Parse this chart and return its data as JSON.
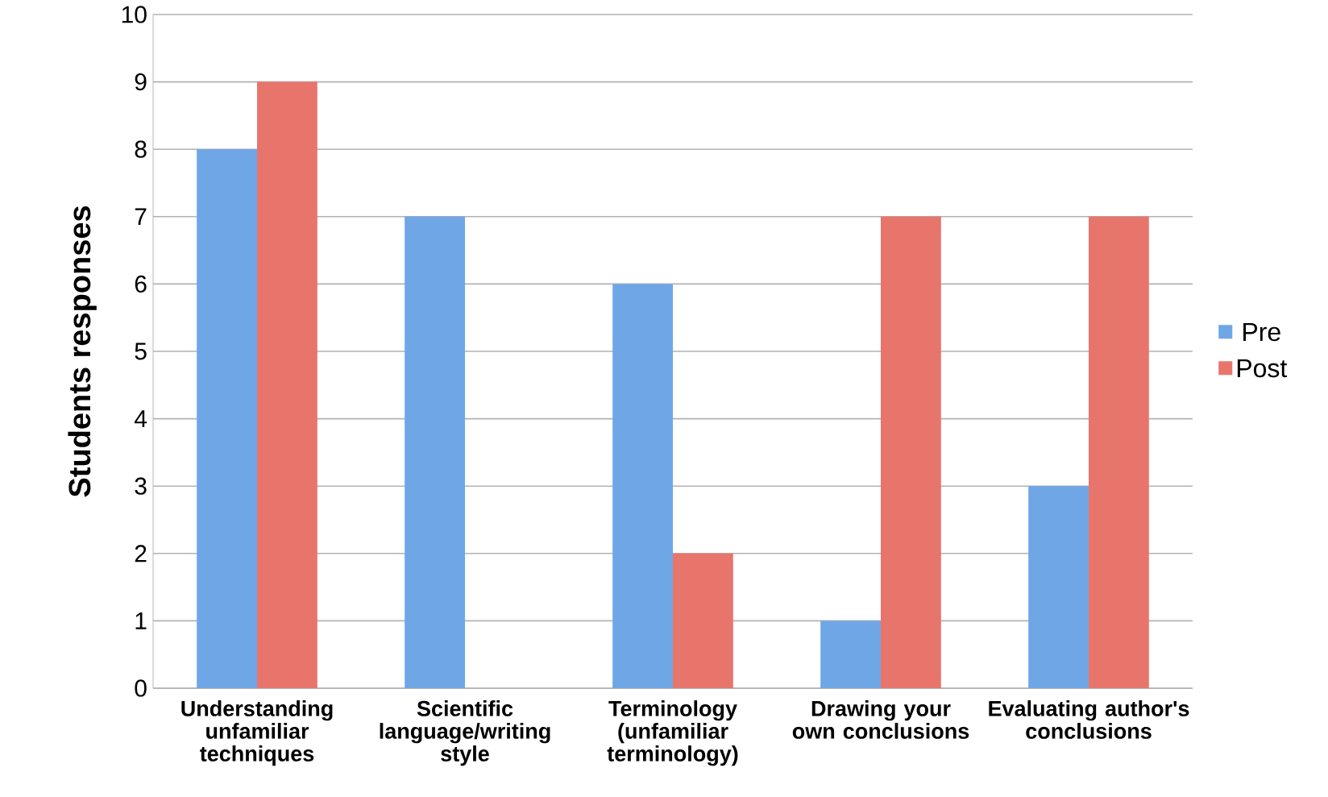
{
  "chart_data": {
    "type": "bar",
    "ylabel": "Students responses",
    "categories": [
      "Understanding unfamiliar techniques",
      "Scientific language/writing style",
      "Terminology (unfamiliar terminology)",
      "Drawing your own conclusions",
      "Evaluating author's conclusions"
    ],
    "series": [
      {
        "name": "Pre",
        "color": "#6fa6e6",
        "values": [
          8,
          7,
          6,
          1,
          3
        ]
      },
      {
        "name": "Post",
        "color": "#e8756c",
        "values": [
          9,
          0,
          2,
          7,
          7
        ]
      }
    ],
    "ylim": [
      0,
      10
    ],
    "yticks": [
      0,
      1,
      2,
      3,
      4,
      5,
      6,
      7,
      8,
      9,
      10
    ],
    "grid": "y",
    "legend": "right"
  }
}
